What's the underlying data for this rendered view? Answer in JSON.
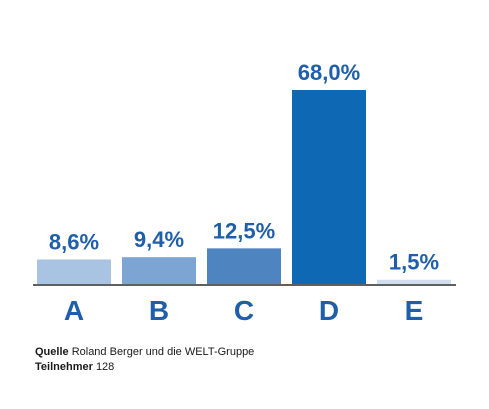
{
  "chart_data": {
    "type": "bar",
    "categories": [
      "A",
      "B",
      "C",
      "D",
      "E"
    ],
    "values": [
      8.6,
      9.4,
      12.5,
      68.0,
      1.5
    ],
    "value_labels": [
      "8,6%",
      "9,4%",
      "12,5%",
      "68,0%",
      "1,5%"
    ],
    "bar_colors": [
      "#a9c4e2",
      "#7da5d3",
      "#4e85c0",
      "#0f68b4",
      "#cfdff0"
    ],
    "label_color": "#1f5ea8",
    "axis_color": "#000000",
    "ylim": [
      0,
      70
    ],
    "grid": false,
    "legend": "none",
    "title": "",
    "xlabel": "",
    "ylabel": ""
  },
  "footer": {
    "source_label": "Quelle",
    "source_text": "Roland Berger und die WELT-Gruppe",
    "participants_label": "Teilnehmer",
    "participants_value": "128"
  }
}
